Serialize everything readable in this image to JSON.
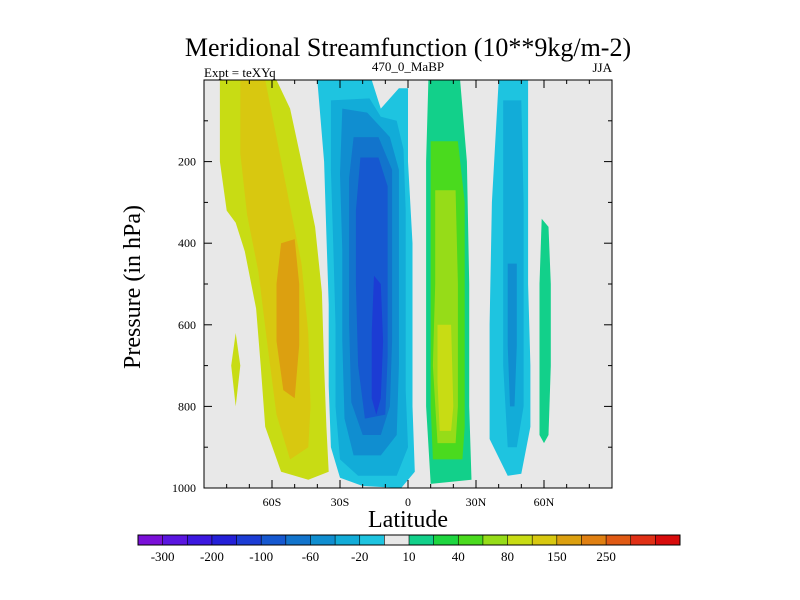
{
  "chart_data": {
    "type": "heatmap",
    "title": "Meridional Streamfunction (10**9kg/m-2)",
    "left_label": "Expt = teXYq",
    "center_label": "470_0_MaBP",
    "right_label": "JJA",
    "xlabel": "Latitude",
    "ylabel": "Pressure (in hPa)",
    "xlim": [
      -90,
      90
    ],
    "ylim": [
      1000,
      0
    ],
    "y_inverted": true,
    "x_ticks": [
      {
        "value": -60,
        "label": "60S"
      },
      {
        "value": -30,
        "label": "30S"
      },
      {
        "value": 0,
        "label": "0"
      },
      {
        "value": 30,
        "label": "30N"
      },
      {
        "value": 60,
        "label": "60N"
      }
    ],
    "y_ticks": [
      {
        "value": 200,
        "label": "200"
      },
      {
        "value": 400,
        "label": "400"
      },
      {
        "value": 600,
        "label": "600"
      },
      {
        "value": 800,
        "label": "800"
      },
      {
        "value": 1000,
        "label": "1000"
      }
    ],
    "background_color": "#e8e8e8",
    "colorbar": {
      "colors": [
        "#7a10d8",
        "#5a16e0",
        "#3c18e0",
        "#2420d8",
        "#1c3cd4",
        "#1658d0",
        "#1274cc",
        "#108ed0",
        "#12acd8",
        "#1ec4e0",
        "#e8e8e8",
        "#12d08a",
        "#1ed640",
        "#4ada1e",
        "#96dc18",
        "#c8dc14",
        "#d8c810",
        "#dca010",
        "#e08012",
        "#e05a14",
        "#e03016",
        "#d80c0c"
      ],
      "labels": [
        "-300",
        "-200",
        "-100",
        "-60",
        "-20",
        "10",
        "40",
        "80",
        "150",
        "250"
      ],
      "label_boundaries": [
        1,
        3,
        5,
        7,
        9,
        11,
        13,
        15,
        17,
        19
      ]
    },
    "regions": [
      {
        "name": "southern-cell-outer",
        "level": 5,
        "polygon": [
          [
            -83,
            0
          ],
          [
            -58,
            0
          ],
          [
            -52,
            70
          ],
          [
            -47,
            200
          ],
          [
            -41,
            360
          ],
          [
            -38,
            520
          ],
          [
            -37,
            700
          ],
          [
            -36,
            850
          ],
          [
            -35,
            960
          ],
          [
            -44,
            980
          ],
          [
            -56,
            960
          ],
          [
            -63,
            850
          ],
          [
            -65,
            700
          ],
          [
            -67,
            560
          ],
          [
            -72,
            420
          ],
          [
            -76,
            350
          ],
          [
            -80,
            320
          ],
          [
            -83,
            200
          ]
        ]
      },
      {
        "name": "southern-cell-mid",
        "level": 6,
        "polygon": [
          [
            -74,
            0
          ],
          [
            -63,
            0
          ],
          [
            -58,
            140
          ],
          [
            -52,
            310
          ],
          [
            -47,
            450
          ],
          [
            -44,
            620
          ],
          [
            -43,
            800
          ],
          [
            -44,
            900
          ],
          [
            -52,
            930
          ],
          [
            -58,
            820
          ],
          [
            -62,
            650
          ],
          [
            -66,
            470
          ],
          [
            -71,
            330
          ],
          [
            -74,
            180
          ]
        ]
      },
      {
        "name": "southern-cell-inner",
        "level": 7,
        "polygon": [
          [
            -56,
            400
          ],
          [
            -50,
            390
          ],
          [
            -48,
            500
          ],
          [
            -48,
            650
          ],
          [
            -50,
            780
          ],
          [
            -55,
            760
          ],
          [
            -58,
            640
          ],
          [
            -58,
            500
          ]
        ]
      },
      {
        "name": "southern-weak-strip",
        "level": 5,
        "polygon": [
          [
            -78,
            700
          ],
          [
            -76,
            620
          ],
          [
            -74,
            700
          ],
          [
            -76,
            800
          ]
        ]
      },
      {
        "name": "hadley-cell-1",
        "level": -1,
        "polygon": [
          [
            -40,
            0
          ],
          [
            -16,
            0
          ],
          [
            -12,
            70
          ],
          [
            -4,
            20
          ],
          [
            0,
            20
          ],
          [
            0,
            200
          ],
          [
            2,
            400
          ],
          [
            2,
            600
          ],
          [
            2,
            800
          ],
          [
            3,
            960
          ],
          [
            -3,
            1000
          ],
          [
            -20,
            995
          ],
          [
            -30,
            975
          ],
          [
            -34,
            900
          ],
          [
            -35,
            750
          ],
          [
            -35,
            550
          ],
          [
            -36,
            380
          ],
          [
            -37,
            200
          ]
        ]
      },
      {
        "name": "hadley-cell-2",
        "level": -2,
        "polygon": [
          [
            -34,
            50
          ],
          [
            -17,
            45
          ],
          [
            -12,
            90
          ],
          [
            -5,
            100
          ],
          [
            -2,
            170
          ],
          [
            -1,
            320
          ],
          [
            -1,
            560
          ],
          [
            -1,
            760
          ],
          [
            0,
            900
          ],
          [
            -5,
            970
          ],
          [
            -22,
            970
          ],
          [
            -30,
            930
          ],
          [
            -32,
            800
          ],
          [
            -32,
            600
          ],
          [
            -33,
            400
          ],
          [
            -34,
            220
          ]
        ]
      },
      {
        "name": "hadley-cell-3",
        "level": -3,
        "polygon": [
          [
            -29,
            70
          ],
          [
            -18,
            80
          ],
          [
            -8,
            140
          ],
          [
            -4,
            220
          ],
          [
            -4,
            450
          ],
          [
            -4,
            700
          ],
          [
            -5,
            870
          ],
          [
            -12,
            920
          ],
          [
            -24,
            920
          ],
          [
            -28,
            830
          ],
          [
            -29,
            640
          ],
          [
            -29,
            420
          ],
          [
            -30,
            230
          ]
        ]
      },
      {
        "name": "hadley-cell-4",
        "level": -4,
        "polygon": [
          [
            -24,
            140
          ],
          [
            -13,
            140
          ],
          [
            -7,
            220
          ],
          [
            -7,
            420
          ],
          [
            -7,
            640
          ],
          [
            -8,
            800
          ],
          [
            -12,
            870
          ],
          [
            -20,
            870
          ],
          [
            -25,
            790
          ],
          [
            -26,
            600
          ],
          [
            -26,
            400
          ],
          [
            -26,
            240
          ]
        ]
      },
      {
        "name": "hadley-cell-5",
        "level": -5,
        "polygon": [
          [
            -21,
            190
          ],
          [
            -13,
            190
          ],
          [
            -9,
            260
          ],
          [
            -9,
            480
          ],
          [
            -9,
            680
          ],
          [
            -10,
            820
          ],
          [
            -19,
            830
          ],
          [
            -22,
            700
          ],
          [
            -23,
            500
          ],
          [
            -23,
            320
          ]
        ]
      },
      {
        "name": "hadley-cell-6",
        "level": -6,
        "polygon": [
          [
            -15,
            480
          ],
          [
            -12,
            500
          ],
          [
            -11,
            640
          ],
          [
            -12,
            780
          ],
          [
            -14,
            820
          ],
          [
            -16,
            780
          ],
          [
            -16,
            620
          ]
        ]
      },
      {
        "name": "northern-hadley-1",
        "level": 1,
        "polygon": [
          [
            9,
            0
          ],
          [
            23,
            0
          ],
          [
            26,
            200
          ],
          [
            27,
            500
          ],
          [
            27,
            800
          ],
          [
            28,
            980
          ],
          [
            10,
            990
          ],
          [
            8,
            800
          ],
          [
            8,
            500
          ],
          [
            8,
            200
          ]
        ]
      },
      {
        "name": "northern-hadley-2",
        "level": 3,
        "polygon": [
          [
            10,
            150
          ],
          [
            22,
            150
          ],
          [
            25,
            300
          ],
          [
            25,
            600
          ],
          [
            25,
            850
          ],
          [
            24,
            930
          ],
          [
            11,
            930
          ],
          [
            10,
            800
          ],
          [
            10,
            500
          ],
          [
            10,
            300
          ]
        ]
      },
      {
        "name": "northern-hadley-3",
        "level": 4,
        "polygon": [
          [
            12,
            270
          ],
          [
            21,
            270
          ],
          [
            22,
            500
          ],
          [
            22,
            800
          ],
          [
            21,
            890
          ],
          [
            13,
            890
          ],
          [
            11,
            700
          ],
          [
            12,
            500
          ]
        ]
      },
      {
        "name": "northern-hadley-4",
        "level": 5,
        "polygon": [
          [
            13,
            600
          ],
          [
            19,
            600
          ],
          [
            20,
            800
          ],
          [
            19,
            860
          ],
          [
            14,
            860
          ],
          [
            13,
            740
          ]
        ]
      },
      {
        "name": "northern-ferrel-1",
        "level": -1,
        "polygon": [
          [
            40,
            0
          ],
          [
            53,
            0
          ],
          [
            53,
            200
          ],
          [
            53,
            500
          ],
          [
            54,
            700
          ],
          [
            54,
            850
          ],
          [
            50,
            965
          ],
          [
            44,
            970
          ],
          [
            36,
            880
          ],
          [
            36,
            600
          ],
          [
            37,
            300
          ]
        ]
      },
      {
        "name": "northern-ferrel-2",
        "level": -2,
        "polygon": [
          [
            42,
            50
          ],
          [
            50,
            50
          ],
          [
            51,
            300
          ],
          [
            51,
            600
          ],
          [
            51,
            800
          ],
          [
            48,
            900
          ],
          [
            44,
            900
          ],
          [
            42,
            700
          ],
          [
            42,
            400
          ]
        ]
      },
      {
        "name": "northern-ferrel-3",
        "level": -3,
        "polygon": [
          [
            44,
            450
          ],
          [
            48,
            450
          ],
          [
            48,
            650
          ],
          [
            47,
            800
          ],
          [
            45,
            800
          ],
          [
            44,
            650
          ]
        ]
      },
      {
        "name": "polar-strip",
        "level": 1,
        "polygon": [
          [
            59,
            340
          ],
          [
            62,
            360
          ],
          [
            63,
            500
          ],
          [
            63,
            700
          ],
          [
            62,
            870
          ],
          [
            60,
            890
          ],
          [
            58,
            870
          ],
          [
            58,
            700
          ],
          [
            58,
            500
          ]
        ]
      }
    ]
  }
}
